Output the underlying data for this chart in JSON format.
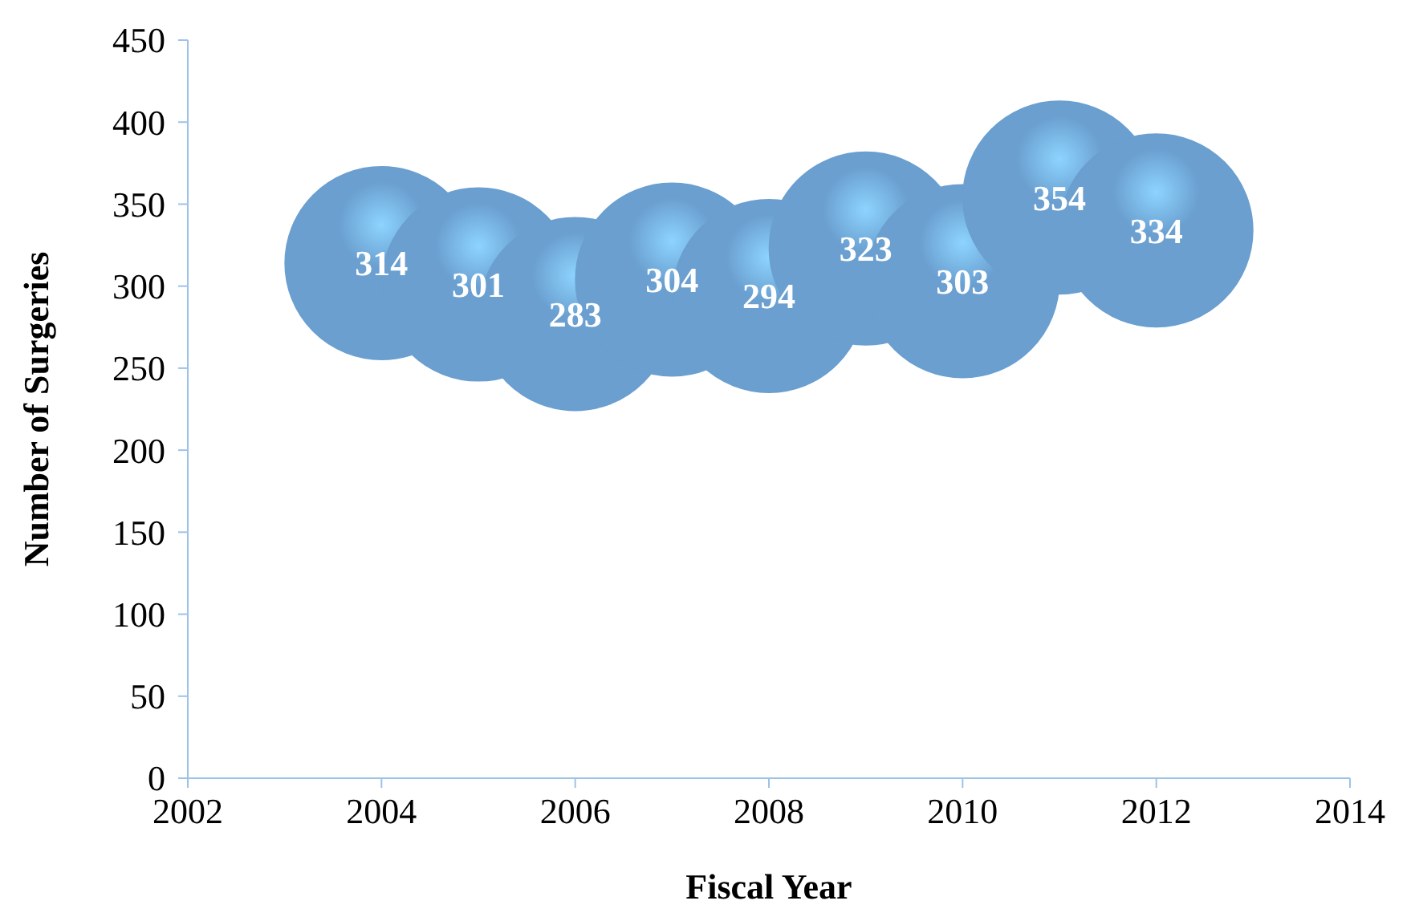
{
  "chart_data": {
    "type": "bubble",
    "xlabel": "Fiscal Year",
    "ylabel": "Number of Surgeries",
    "x": [
      2004,
      2005,
      2006,
      2007,
      2008,
      2009,
      2010,
      2011,
      2012
    ],
    "series": [
      {
        "color": "#6a9fd0",
        "values": [
          314,
          301,
          283,
          304,
          294,
          323,
          303,
          354,
          334
        ],
        "sizes": [
          1,
          1,
          1,
          1,
          1,
          1,
          1,
          1,
          1
        ]
      }
    ],
    "xlim": [
      2002,
      2014
    ],
    "xticks": [
      2002,
      2004,
      2006,
      2008,
      2010,
      2012,
      2014
    ],
    "ylim": [
      0,
      450
    ],
    "yticks": [
      0,
      50,
      100,
      150,
      200,
      250,
      300,
      350,
      400,
      450
    ],
    "grid": false,
    "data_labels": true
  }
}
